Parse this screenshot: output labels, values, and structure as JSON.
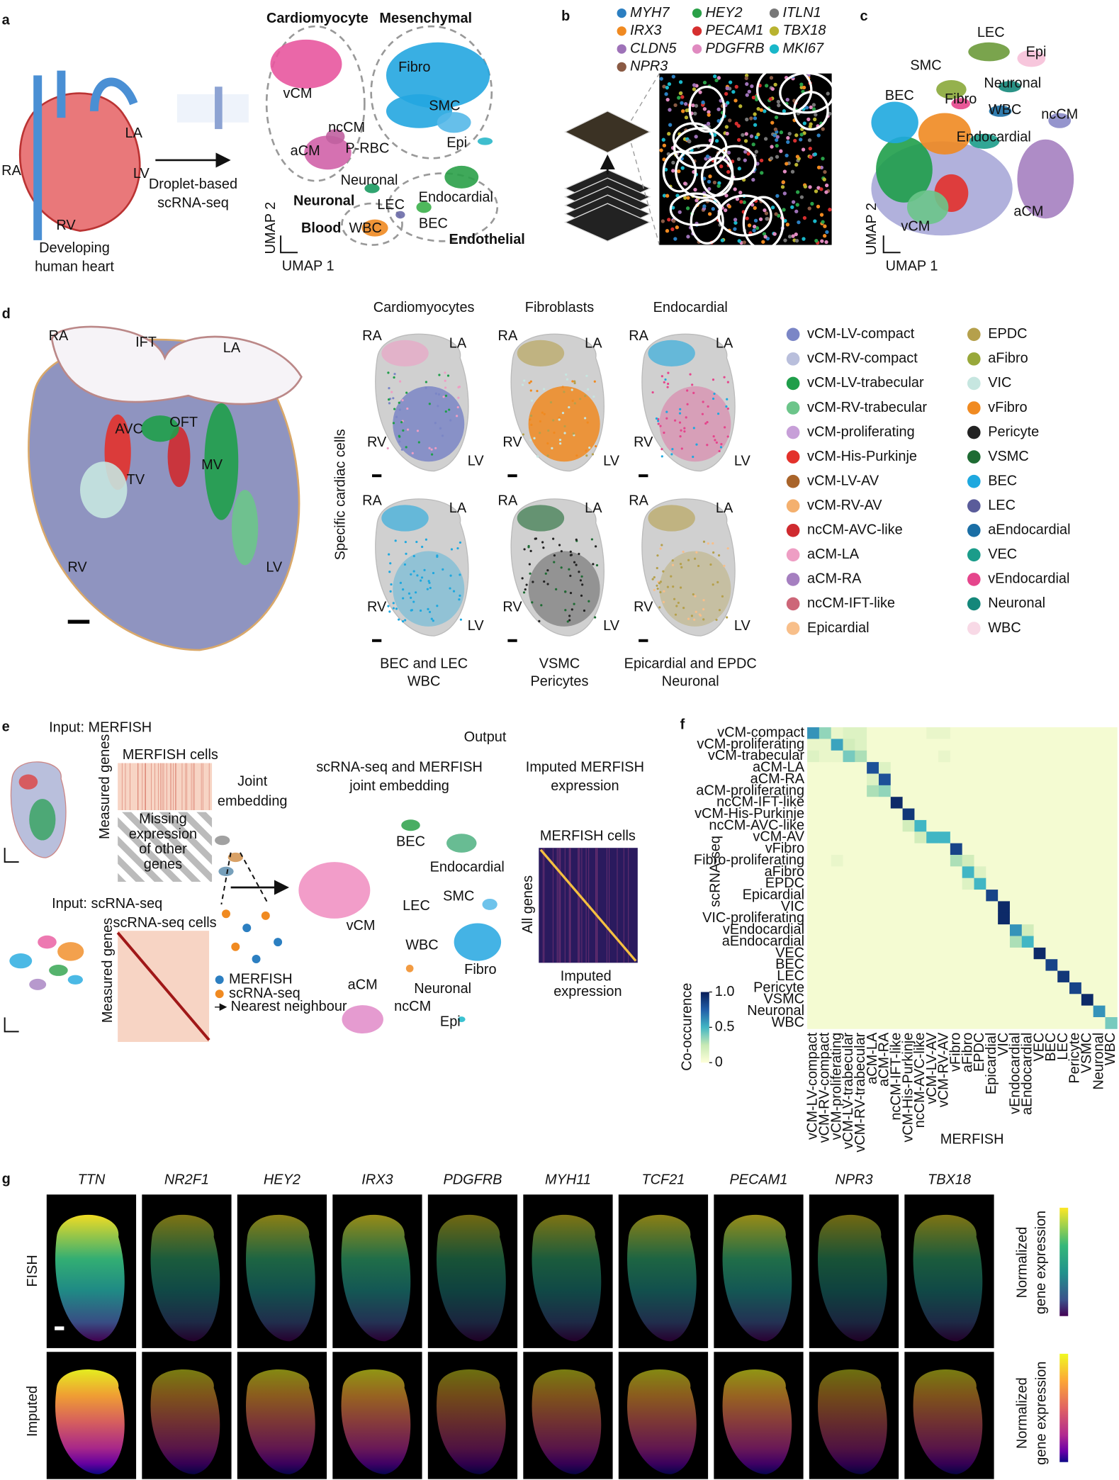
{
  "panel_labels": [
    "a",
    "b",
    "c",
    "d",
    "e",
    "f",
    "g"
  ],
  "a": {
    "heart_labels": [
      "RA",
      "LA",
      "LV",
      "RV"
    ],
    "heart_caption": [
      "Developing",
      "human heart"
    ],
    "method": [
      "Droplet-based",
      "scRNA-seq"
    ],
    "groups": [
      "Cardiomyocyte",
      "Mesenchymal",
      "Neuronal",
      "Blood",
      "Endothelial"
    ],
    "clusters": [
      "vCM",
      "Fibro",
      "SMC",
      "Epi",
      "ncCM",
      "aCM",
      "P-RBC",
      "Neuronal",
      "LEC",
      "Endocardial",
      "WBC",
      "BEC"
    ],
    "axes": [
      "UMAP 2",
      "UMAP 1"
    ]
  },
  "b": {
    "genes": [
      {
        "name": "MYH7",
        "color": "#2c7fc1"
      },
      {
        "name": "HEY2",
        "color": "#2aa048"
      },
      {
        "name": "ITLN1",
        "color": "#777777"
      },
      {
        "name": "IRX3",
        "color": "#f08a21"
      },
      {
        "name": "PECAM1",
        "color": "#d62f2f"
      },
      {
        "name": "TBX18",
        "color": "#b9b330"
      },
      {
        "name": "CLDN5",
        "color": "#9e72b8"
      },
      {
        "name": "PDGFRB",
        "color": "#e08ac0"
      },
      {
        "name": "MKI67",
        "color": "#19b7c9"
      },
      {
        "name": "NPR3",
        "color": "#8a5a44"
      }
    ]
  },
  "c": {
    "clusters": [
      "LEC",
      "Epi",
      "SMC",
      "Neuronal",
      "BEC",
      "Fibro",
      "WBC",
      "ncCM",
      "Endocardial",
      "aCM",
      "vCM"
    ],
    "axes": [
      "UMAP 2",
      "UMAP 1"
    ]
  },
  "d": {
    "section_labels": [
      "RA",
      "IFT",
      "LA",
      "AVC",
      "OFT",
      "MV",
      "TV",
      "RV",
      "LV"
    ],
    "panel_titles": [
      "Cardiomyocytes",
      "Fibroblasts",
      "Endocardial"
    ],
    "y_label": "Specific cardiac cells",
    "chambers": [
      "RA",
      "LA",
      "RV",
      "LV"
    ],
    "bottom_captions": [
      [
        "BEC and LEC",
        "WBC"
      ],
      [
        "VSMC",
        "Pericytes"
      ],
      [
        "Epicardial and EPDC",
        "Neuronal"
      ]
    ],
    "legend": [
      {
        "name": "vCM-LV-compact",
        "color": "#7b86c6"
      },
      {
        "name": "vCM-RV-compact",
        "color": "#b9bfdc"
      },
      {
        "name": "vCM-LV-trabecular",
        "color": "#1f9e4a"
      },
      {
        "name": "vCM-RV-trabecular",
        "color": "#6cc58a"
      },
      {
        "name": "vCM-proliferating",
        "color": "#c79fd8"
      },
      {
        "name": "vCM-His-Purkinje",
        "color": "#e3312b"
      },
      {
        "name": "vCM-LV-AV",
        "color": "#a9642a"
      },
      {
        "name": "vCM-RV-AV",
        "color": "#f4b06e"
      },
      {
        "name": "ncCM-AVC-like",
        "color": "#cf2a2f"
      },
      {
        "name": "aCM-LA",
        "color": "#ee9ec4"
      },
      {
        "name": "aCM-RA",
        "color": "#a57fc0"
      },
      {
        "name": "ncCM-IFT-like",
        "color": "#cd6678"
      },
      {
        "name": "Epicardial",
        "color": "#f8bf8a"
      },
      {
        "name": "EPDC",
        "color": "#b5a04c"
      },
      {
        "name": "aFibro",
        "color": "#98a83a"
      },
      {
        "name": "VIC",
        "color": "#c6e6e0"
      },
      {
        "name": "vFibro",
        "color": "#f08a21"
      },
      {
        "name": "Pericyte",
        "color": "#222222"
      },
      {
        "name": "VSMC",
        "color": "#1e6b33"
      },
      {
        "name": "BEC",
        "color": "#1ea8df"
      },
      {
        "name": "LEC",
        "color": "#5a5c9a"
      },
      {
        "name": "aEndocardial",
        "color": "#1a6ea5"
      },
      {
        "name": "VEC",
        "color": "#1b9c8a"
      },
      {
        "name": "vEndocardial",
        "color": "#e5458c"
      },
      {
        "name": "Neuronal",
        "color": "#14877a"
      },
      {
        "name": "WBC",
        "color": "#f8d9e6"
      }
    ]
  },
  "e": {
    "merfish_input": "Input: MERFISH",
    "merfish_cells": "MERFISH cells",
    "measured_genes": "Measured genes",
    "missing": [
      "Missing",
      "expression",
      "of other",
      "genes"
    ],
    "joint": [
      "Joint",
      "embedding"
    ],
    "scrna_input": "Input: scRNA-seq",
    "scrna_cells": "scRNA-seq cells",
    "key": [
      "MERFISH",
      "scRNA-seq",
      "Nearest neighbour"
    ],
    "output": "Output",
    "joint_title": [
      "scRNA-seq and MERFISH",
      "joint embedding"
    ],
    "imputed_title": [
      "Imputed MERFISH",
      "expression"
    ],
    "clusters": [
      "vCM",
      "BEC",
      "Endocardial",
      "LEC",
      "SMC",
      "WBC",
      "Fibro",
      "Neuronal",
      "aCM",
      "ncCM",
      "Epi"
    ],
    "imputed_cells": "MERFISH cells",
    "all_genes": "All genes",
    "imputed_caption": [
      "Imputed",
      "expression"
    ]
  },
  "chart_data": {
    "type": "heatmap",
    "x_label": "MERFISH",
    "y_label": "scRNA-seq",
    "colorbar_label": "Co-occurence",
    "x_categories": [
      "vCM-LV-compact",
      "vCM-RV-compact",
      "vCM-proliferating",
      "vCM-LV-trabecular",
      "vCM-RV-trabecular",
      "aCM-LA",
      "aCM-RA",
      "ncCM-IFT-like",
      "vCM-His-Purkinje",
      "ncCM-AVC-like",
      "vCM-LV-AV",
      "vCM-RV-AV",
      "vFibro",
      "aFibro",
      "EPDC",
      "Epicardial",
      "VIC",
      "vEndocardial",
      "aEndocardial",
      "VEC",
      "BEC",
      "LEC",
      "Pericyte",
      "VSMC",
      "Neuronal",
      "WBC"
    ],
    "y_categories": [
      "vCM-compact",
      "vCM-proliferating",
      "vCM-trabecular",
      "aCM-LA",
      "aCM-RA",
      "aCM-proliferating",
      "ncCM-IFT-like",
      "vCM-His-Purkinje",
      "ncCM-AVC-like",
      "vCM-AV",
      "vFibro",
      "Fibro-proliferating",
      "aFibro",
      "EPDC",
      "Epicardial",
      "VIC",
      "VIC-proliferating",
      "vEndocardial",
      "aEndocardial",
      "VEC",
      "BEC",
      "LEC",
      "Pericyte",
      "VSMC",
      "Neuronal",
      "WBC"
    ],
    "values": [
      [
        0.6,
        0.35,
        0.1,
        0.15,
        0.15,
        0.05,
        0.05,
        0.05,
        0.05,
        0.05,
        0.1,
        0.1,
        0.05,
        0.05,
        0.05,
        0.05,
        0.05,
        0.05,
        0.05,
        0.05,
        0.05,
        0.05,
        0.05,
        0.05,
        0.05,
        0.05
      ],
      [
        0.1,
        0.1,
        0.55,
        0.2,
        0.15,
        0.05,
        0.05,
        0.05,
        0.05,
        0.05,
        0.05,
        0.05,
        0.05,
        0.05,
        0.05,
        0.05,
        0.05,
        0.05,
        0.05,
        0.05,
        0.05,
        0.05,
        0.05,
        0.05,
        0.05,
        0.05
      ],
      [
        0.15,
        0.1,
        0.1,
        0.4,
        0.3,
        0.05,
        0.05,
        0.05,
        0.05,
        0.05,
        0.05,
        0.1,
        0.05,
        0.05,
        0.05,
        0.05,
        0.05,
        0.05,
        0.05,
        0.05,
        0.05,
        0.05,
        0.05,
        0.05,
        0.05,
        0.05
      ],
      [
        0.05,
        0.05,
        0.05,
        0.05,
        0.05,
        0.8,
        0.15,
        0.05,
        0.05,
        0.05,
        0.05,
        0.05,
        0.05,
        0.05,
        0.05,
        0.05,
        0.05,
        0.05,
        0.05,
        0.05,
        0.05,
        0.05,
        0.05,
        0.05,
        0.05,
        0.05
      ],
      [
        0.05,
        0.05,
        0.05,
        0.05,
        0.05,
        0.15,
        0.8,
        0.05,
        0.05,
        0.05,
        0.05,
        0.05,
        0.05,
        0.05,
        0.05,
        0.05,
        0.05,
        0.05,
        0.05,
        0.05,
        0.05,
        0.05,
        0.05,
        0.05,
        0.05,
        0.05
      ],
      [
        0.05,
        0.05,
        0.05,
        0.05,
        0.05,
        0.3,
        0.35,
        0.05,
        0.05,
        0.05,
        0.05,
        0.05,
        0.05,
        0.05,
        0.05,
        0.05,
        0.05,
        0.05,
        0.05,
        0.05,
        0.05,
        0.05,
        0.05,
        0.05,
        0.05,
        0.05
      ],
      [
        0.05,
        0.05,
        0.05,
        0.05,
        0.05,
        0.05,
        0.05,
        0.95,
        0.05,
        0.05,
        0.05,
        0.05,
        0.05,
        0.05,
        0.05,
        0.05,
        0.05,
        0.05,
        0.05,
        0.05,
        0.05,
        0.05,
        0.05,
        0.05,
        0.05,
        0.05
      ],
      [
        0.05,
        0.05,
        0.05,
        0.05,
        0.05,
        0.05,
        0.05,
        0.05,
        0.9,
        0.05,
        0.05,
        0.05,
        0.05,
        0.05,
        0.05,
        0.05,
        0.05,
        0.05,
        0.05,
        0.05,
        0.05,
        0.05,
        0.05,
        0.05,
        0.05,
        0.05
      ],
      [
        0.05,
        0.05,
        0.05,
        0.05,
        0.05,
        0.05,
        0.05,
        0.05,
        0.2,
        0.5,
        0.05,
        0.05,
        0.05,
        0.05,
        0.05,
        0.05,
        0.05,
        0.05,
        0.05,
        0.05,
        0.05,
        0.05,
        0.05,
        0.05,
        0.05,
        0.05
      ],
      [
        0.05,
        0.05,
        0.05,
        0.05,
        0.05,
        0.05,
        0.05,
        0.05,
        0.05,
        0.2,
        0.5,
        0.5,
        0.05,
        0.05,
        0.05,
        0.05,
        0.05,
        0.05,
        0.05,
        0.05,
        0.05,
        0.05,
        0.05,
        0.05,
        0.05,
        0.05
      ],
      [
        0.05,
        0.05,
        0.05,
        0.05,
        0.05,
        0.05,
        0.05,
        0.05,
        0.05,
        0.05,
        0.05,
        0.05,
        0.85,
        0.05,
        0.05,
        0.05,
        0.05,
        0.05,
        0.05,
        0.05,
        0.05,
        0.05,
        0.05,
        0.05,
        0.05,
        0.05
      ],
      [
        0.05,
        0.05,
        0.1,
        0.05,
        0.05,
        0.05,
        0.05,
        0.05,
        0.05,
        0.05,
        0.05,
        0.05,
        0.3,
        0.2,
        0.05,
        0.05,
        0.05,
        0.05,
        0.05,
        0.05,
        0.05,
        0.05,
        0.05,
        0.05,
        0.05,
        0.05
      ],
      [
        0.05,
        0.05,
        0.05,
        0.05,
        0.05,
        0.05,
        0.05,
        0.05,
        0.05,
        0.05,
        0.05,
        0.05,
        0.05,
        0.5,
        0.15,
        0.05,
        0.05,
        0.05,
        0.05,
        0.05,
        0.05,
        0.05,
        0.05,
        0.05,
        0.05,
        0.05
      ],
      [
        0.05,
        0.05,
        0.05,
        0.05,
        0.05,
        0.05,
        0.05,
        0.05,
        0.05,
        0.05,
        0.05,
        0.05,
        0.05,
        0.15,
        0.5,
        0.05,
        0.05,
        0.05,
        0.05,
        0.05,
        0.05,
        0.05,
        0.05,
        0.05,
        0.05,
        0.05
      ],
      [
        0.05,
        0.05,
        0.05,
        0.05,
        0.05,
        0.05,
        0.05,
        0.05,
        0.05,
        0.05,
        0.05,
        0.05,
        0.05,
        0.05,
        0.05,
        0.85,
        0.05,
        0.05,
        0.05,
        0.05,
        0.05,
        0.05,
        0.05,
        0.05,
        0.05,
        0.05
      ],
      [
        0.05,
        0.05,
        0.05,
        0.05,
        0.05,
        0.05,
        0.05,
        0.05,
        0.05,
        0.05,
        0.05,
        0.05,
        0.05,
        0.05,
        0.05,
        0.05,
        0.95,
        0.05,
        0.05,
        0.05,
        0.05,
        0.05,
        0.05,
        0.05,
        0.05,
        0.05
      ],
      [
        0.05,
        0.05,
        0.05,
        0.05,
        0.05,
        0.05,
        0.05,
        0.05,
        0.05,
        0.05,
        0.05,
        0.05,
        0.05,
        0.05,
        0.05,
        0.05,
        0.95,
        0.05,
        0.05,
        0.05,
        0.05,
        0.05,
        0.05,
        0.05,
        0.05,
        0.05
      ],
      [
        0.05,
        0.05,
        0.05,
        0.05,
        0.05,
        0.05,
        0.05,
        0.05,
        0.05,
        0.05,
        0.05,
        0.05,
        0.05,
        0.05,
        0.05,
        0.05,
        0.05,
        0.6,
        0.2,
        0.05,
        0.05,
        0.05,
        0.05,
        0.05,
        0.05,
        0.05
      ],
      [
        0.05,
        0.05,
        0.05,
        0.05,
        0.05,
        0.05,
        0.05,
        0.05,
        0.05,
        0.05,
        0.05,
        0.05,
        0.05,
        0.05,
        0.05,
        0.05,
        0.05,
        0.3,
        0.5,
        0.05,
        0.05,
        0.05,
        0.05,
        0.05,
        0.05,
        0.05
      ],
      [
        0.05,
        0.05,
        0.05,
        0.05,
        0.05,
        0.05,
        0.05,
        0.05,
        0.05,
        0.05,
        0.05,
        0.05,
        0.05,
        0.05,
        0.05,
        0.05,
        0.05,
        0.05,
        0.05,
        0.95,
        0.05,
        0.05,
        0.05,
        0.05,
        0.05,
        0.05
      ],
      [
        0.05,
        0.05,
        0.05,
        0.05,
        0.05,
        0.05,
        0.05,
        0.05,
        0.05,
        0.05,
        0.05,
        0.05,
        0.05,
        0.05,
        0.05,
        0.05,
        0.05,
        0.05,
        0.05,
        0.05,
        0.85,
        0.05,
        0.05,
        0.05,
        0.05,
        0.05
      ],
      [
        0.05,
        0.05,
        0.05,
        0.05,
        0.05,
        0.05,
        0.05,
        0.05,
        0.05,
        0.05,
        0.05,
        0.05,
        0.05,
        0.05,
        0.05,
        0.05,
        0.05,
        0.05,
        0.05,
        0.05,
        0.05,
        0.9,
        0.05,
        0.05,
        0.05,
        0.05
      ],
      [
        0.05,
        0.05,
        0.05,
        0.05,
        0.05,
        0.05,
        0.05,
        0.05,
        0.05,
        0.05,
        0.05,
        0.05,
        0.05,
        0.05,
        0.05,
        0.05,
        0.05,
        0.05,
        0.05,
        0.05,
        0.05,
        0.05,
        0.85,
        0.05,
        0.05,
        0.05
      ],
      [
        0.05,
        0.05,
        0.05,
        0.05,
        0.05,
        0.05,
        0.05,
        0.05,
        0.05,
        0.05,
        0.05,
        0.05,
        0.05,
        0.05,
        0.05,
        0.05,
        0.05,
        0.05,
        0.05,
        0.05,
        0.05,
        0.05,
        0.05,
        0.95,
        0.05,
        0.05
      ],
      [
        0.05,
        0.05,
        0.05,
        0.05,
        0.05,
        0.05,
        0.05,
        0.05,
        0.05,
        0.05,
        0.05,
        0.05,
        0.05,
        0.05,
        0.05,
        0.05,
        0.05,
        0.05,
        0.05,
        0.05,
        0.05,
        0.05,
        0.05,
        0.05,
        0.6,
        0.05
      ],
      [
        0.05,
        0.05,
        0.05,
        0.05,
        0.05,
        0.05,
        0.05,
        0.05,
        0.05,
        0.05,
        0.05,
        0.05,
        0.05,
        0.05,
        0.05,
        0.05,
        0.05,
        0.05,
        0.05,
        0.05,
        0.05,
        0.05,
        0.05,
        0.05,
        0.05,
        0.4
      ]
    ],
    "clim": [
      0,
      1
    ],
    "cticks": [
      0,
      0.5,
      {
        "value": 1,
        "label": "1.0"
      }
    ],
    "colormap": [
      "#ffffd9",
      "#c7e9b4",
      "#41b6c4",
      "#225ea8",
      "#081d58"
    ]
  },
  "g": {
    "genes": [
      "TTN",
      "NR2F1",
      "HEY2",
      "IRX3",
      "PDGFRB",
      "MYH11",
      "TCF21",
      "PECAM1",
      "NPR3",
      "TBX18"
    ],
    "rows": [
      "FISH",
      "Imputed"
    ],
    "colorbar_label": [
      "Normalized",
      "gene expression"
    ]
  }
}
